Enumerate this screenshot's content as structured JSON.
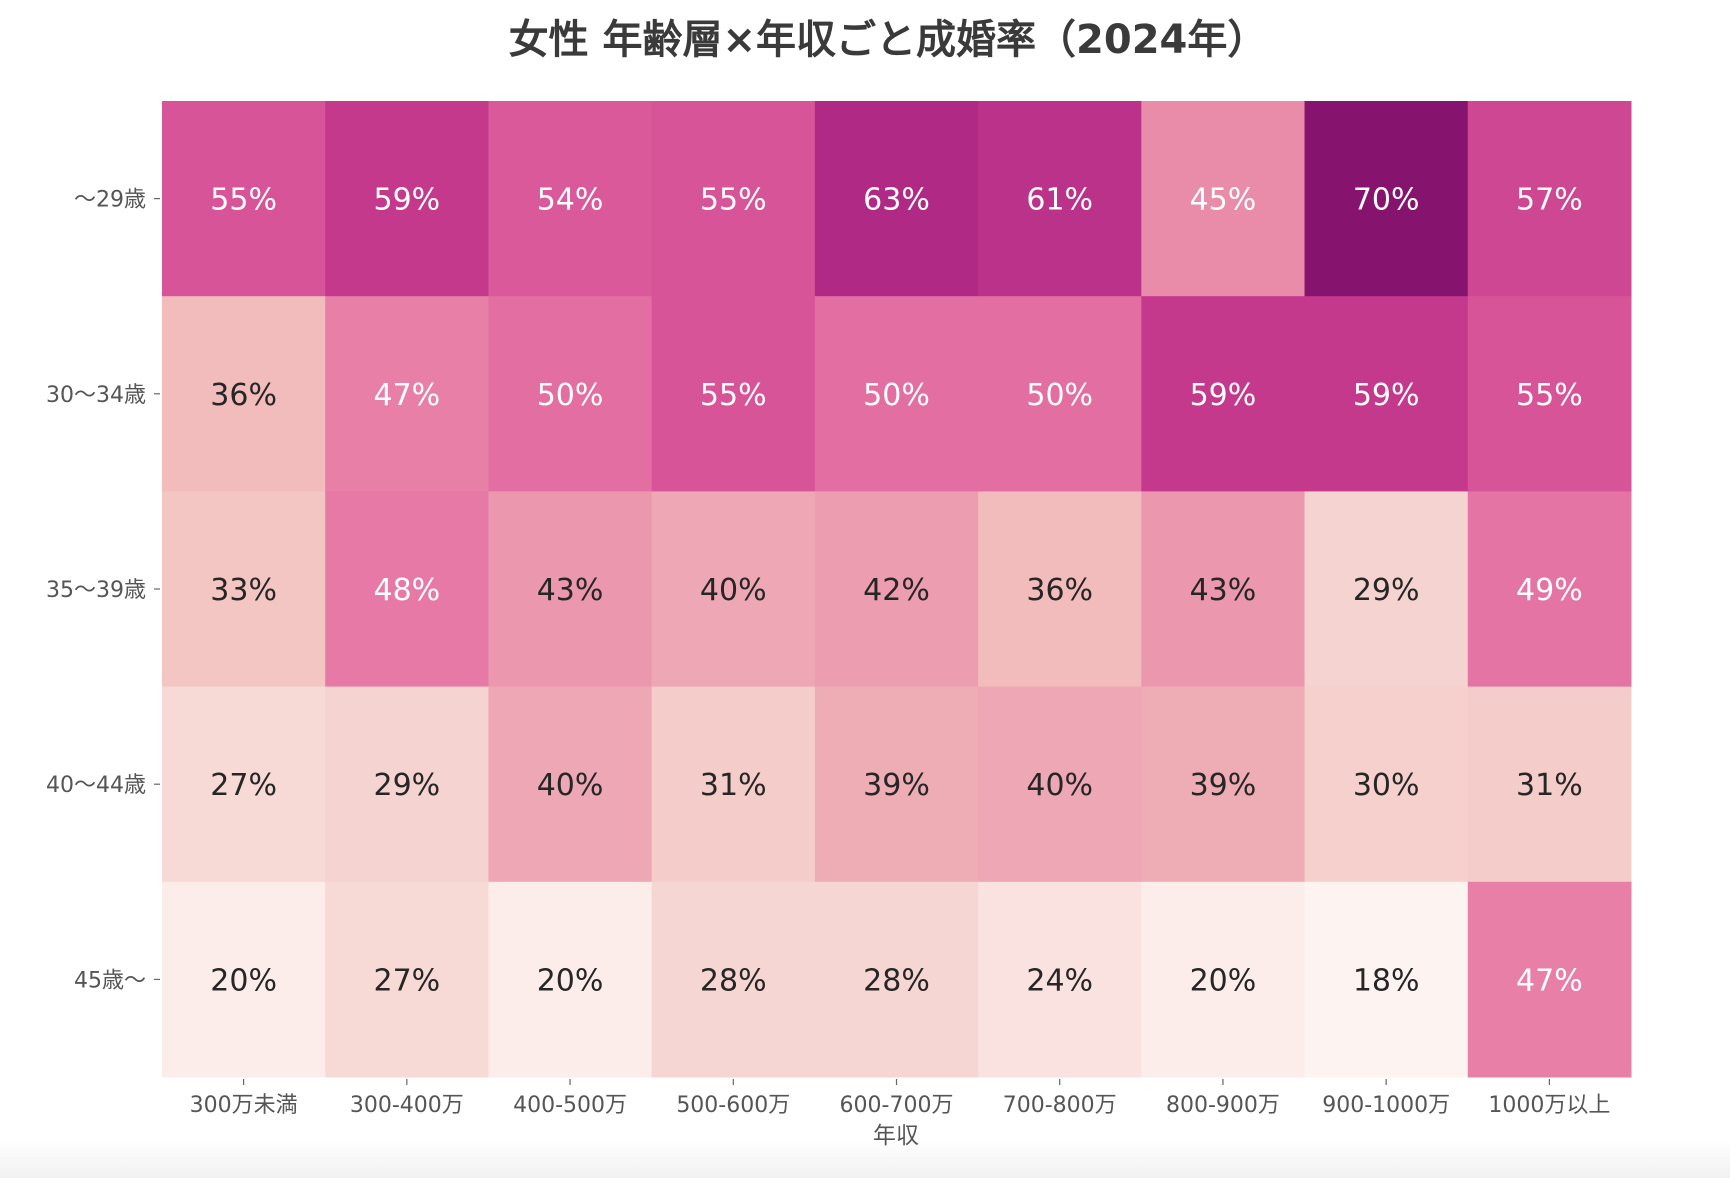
{
  "chart_data": {
    "type": "heatmap",
    "title": "女性 年齢層×年収ごと成婚率（2024年）",
    "xlabel": "年収",
    "ylabel": "",
    "x_categories": [
      "300万未満",
      "300-400万",
      "400-500万",
      "500-600万",
      "600-700万",
      "700-800万",
      "800-900万",
      "900-1000万",
      "1000万以上"
    ],
    "y_categories": [
      "～29歳",
      "30～34歳",
      "35～39歳",
      "40～44歳",
      "45歳～"
    ],
    "values": [
      [
        55,
        59,
        54,
        55,
        63,
        61,
        45,
        70,
        57
      ],
      [
        36,
        47,
        50,
        55,
        50,
        50,
        59,
        59,
        55
      ],
      [
        33,
        48,
        43,
        40,
        42,
        36,
        43,
        29,
        49
      ],
      [
        27,
        29,
        40,
        31,
        39,
        40,
        39,
        30,
        31
      ],
      [
        20,
        27,
        20,
        28,
        28,
        24,
        20,
        18,
        47
      ]
    ],
    "value_format": "%",
    "colormap": {
      "stops": [
        {
          "value": 18,
          "color": "#fdf3f1"
        },
        {
          "value": 28,
          "color": "#f6d6d3"
        },
        {
          "value": 36,
          "color": "#f1bcbb"
        },
        {
          "value": 43,
          "color": "#eb98ae"
        },
        {
          "value": 48,
          "color": "#e679a5"
        },
        {
          "value": 55,
          "color": "#d75499"
        },
        {
          "value": 59,
          "color": "#c4398c"
        },
        {
          "value": 63,
          "color": "#b02a85"
        },
        {
          "value": 70,
          "color": "#86146f"
        }
      ],
      "light_text_threshold": 44,
      "light_text_color": "#ffffff",
      "dark_text_color": "#262626"
    },
    "grid": false,
    "legend": "none"
  }
}
